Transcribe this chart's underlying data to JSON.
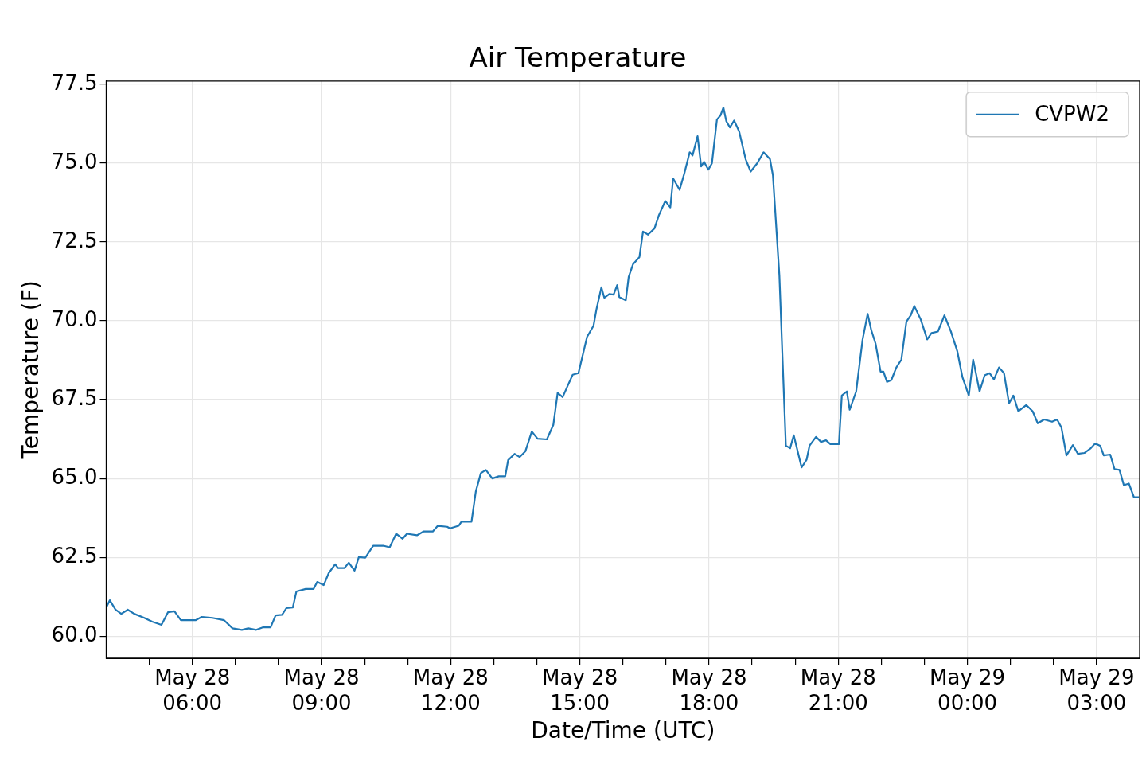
{
  "chart_data": {
    "type": "line",
    "title": "Air Temperature",
    "xlabel": "Date/Time (UTC)",
    "ylabel": "Temperature (F)",
    "x": [
      "--05-28T04:00",
      "--05-28T04:05",
      "--05-28T04:13",
      "--05-28T04:21",
      "--05-28T04:30",
      "--05-28T04:39",
      "--05-28T04:53",
      "--05-28T05:04",
      "--05-28T05:17",
      "--05-28T05:26",
      "--05-28T05:35",
      "--05-28T05:44",
      "--05-28T06:05",
      "--05-28T06:13",
      "--05-28T06:28",
      "--05-28T06:44",
      "--05-28T06:56",
      "--05-28T07:09",
      "--05-28T07:18",
      "--05-28T07:29",
      "--05-28T07:38",
      "--05-28T07:49",
      "--05-28T07:56",
      "--05-28T08:05",
      "--05-28T08:11",
      "--05-28T08:20",
      "--05-28T08:25",
      "--05-28T08:38",
      "--05-28T08:49",
      "--05-28T08:54",
      "--05-28T09:03",
      "--05-28T09:10",
      "--05-28T09:19",
      "--05-28T09:23",
      "--05-28T09:32",
      "--05-28T09:38",
      "--05-28T09:46",
      "--05-28T09:52",
      "--05-28T10:01",
      "--05-28T10:12",
      "--05-28T10:26",
      "--05-28T10:35",
      "--05-28T10:44",
      "--05-28T10:53",
      "--05-28T10:59",
      "--05-28T11:13",
      "--05-28T11:22",
      "--05-28T11:35",
      "--05-28T11:42",
      "--05-28T11:55",
      "--05-28T11:59",
      "--05-28T12:11",
      "--05-28T12:15",
      "--05-28T12:29",
      "--05-28T12:35",
      "--05-28T12:42",
      "--05-28T12:49",
      "--05-28T12:58",
      "--05-28T13:07",
      "--05-28T13:16",
      "--05-28T13:20",
      "--05-28T13:29",
      "--05-28T13:36",
      "--05-28T13:44",
      "--05-28T13:53",
      "--05-28T14:01",
      "--05-28T14:14",
      "--05-28T14:23",
      "--05-28T14:29",
      "--05-28T14:36",
      "--05-28T14:43",
      "--05-28T14:50",
      "--05-28T14:58",
      "--05-28T15:10",
      "--05-28T15:19",
      "--05-28T15:23",
      "--05-28T15:30",
      "--05-28T15:34",
      "--05-28T15:41",
      "--05-28T15:47",
      "--05-28T15:52",
      "--05-28T15:55",
      "--05-28T16:04",
      "--05-28T16:08",
      "--05-28T16:14",
      "--05-28T16:23",
      "--05-28T16:28",
      "--05-28T16:35",
      "--05-28T16:44",
      "--05-28T16:50",
      "--05-28T16:59",
      "--05-28T17:06",
      "--05-28T17:10",
      "--05-28T17:19",
      "--05-28T17:26",
      "--05-28T17:33",
      "--05-28T17:37",
      "--05-28T17:44",
      "--05-28T17:49",
      "--05-28T17:53",
      "--05-28T17:59",
      "--05-28T18:04",
      "--05-28T18:11",
      "--05-28T18:16",
      "--05-28T18:20",
      "--05-28T18:24",
      "--05-28T18:29",
      "--05-28T18:35",
      "--05-28T18:42",
      "--05-28T18:51",
      "--05-28T18:58",
      "--05-28T19:07",
      "--05-28T19:16",
      "--05-28T19:25",
      "--05-28T19:29",
      "--05-28T19:38",
      "--05-28T19:47",
      "--05-28T19:53",
      "--05-28T19:58",
      "--05-28T20:09",
      "--05-28T20:16",
      "--05-28T20:20",
      "--05-28T20:29",
      "--05-28T20:36",
      "--05-28T20:43",
      "--05-28T20:49",
      "--05-28T21:01",
      "--05-28T21:05",
      "--05-28T21:12",
      "--05-28T21:16",
      "--05-28T21:25",
      "--05-28T21:34",
      "--05-28T21:41",
      "--05-28T21:46",
      "--05-28T21:52",
      "--05-28T21:59",
      "--05-28T22:03",
      "--05-28T22:08",
      "--05-28T22:14",
      "--05-28T22:21",
      "--05-28T22:28",
      "--05-28T22:35",
      "--05-28T22:41",
      "--05-28T22:46",
      "--05-28T22:55",
      "--05-28T23:04",
      "--05-28T23:10",
      "--05-28T23:19",
      "--05-28T23:28",
      "--05-28T23:37",
      "--05-28T23:46",
      "--05-28T23:53",
      "--05-29T00:02",
      "--05-29T00:08",
      "--05-29T00:17",
      "--05-29T00:24",
      "--05-29T00:31",
      "--05-29T00:37",
      "--05-29T00:44",
      "--05-29T00:51",
      "--05-29T00:58",
      "--05-29T01:04",
      "--05-29T01:11",
      "--05-29T01:22",
      "--05-29T01:31",
      "--05-29T01:38",
      "--05-29T01:47",
      "--05-29T01:58",
      "--05-29T02:05",
      "--05-29T02:11",
      "--05-29T02:18",
      "--05-29T02:27",
      "--05-29T02:34",
      "--05-29T02:43",
      "--05-29T02:52",
      "--05-29T02:58",
      "--05-29T03:05",
      "--05-29T03:10",
      "--05-29T03:19",
      "--05-29T03:25",
      "--05-29T03:32",
      "--05-29T03:38",
      "--05-29T03:45",
      "--05-29T03:52",
      "--05-29T03:59"
    ],
    "series": [
      {
        "name": "CVPW2",
        "color": "#1f77b4",
        "values": [
          60.91,
          61.14,
          60.84,
          60.71,
          60.84,
          60.71,
          60.58,
          60.46,
          60.36,
          60.76,
          60.79,
          60.51,
          60.51,
          60.61,
          60.58,
          60.51,
          60.25,
          60.2,
          60.25,
          60.2,
          60.28,
          60.28,
          60.66,
          60.68,
          60.89,
          60.91,
          61.42,
          61.5,
          61.5,
          61.72,
          61.62,
          62.0,
          62.28,
          62.16,
          62.16,
          62.33,
          62.08,
          62.51,
          62.49,
          62.87,
          62.87,
          62.82,
          63.25,
          63.09,
          63.25,
          63.2,
          63.32,
          63.32,
          63.5,
          63.47,
          63.42,
          63.5,
          63.63,
          63.63,
          64.59,
          65.17,
          65.27,
          65.0,
          65.07,
          65.07,
          65.58,
          65.78,
          65.68,
          65.86,
          66.49,
          66.26,
          66.24,
          66.7,
          67.71,
          67.58,
          67.94,
          68.29,
          68.34,
          69.49,
          69.84,
          70.35,
          71.06,
          70.73,
          70.85,
          70.83,
          71.13,
          70.75,
          70.65,
          71.39,
          71.79,
          72.02,
          72.83,
          72.73,
          72.93,
          73.34,
          73.8,
          73.59,
          74.51,
          74.15,
          74.71,
          75.34,
          75.24,
          75.85,
          74.89,
          75.04,
          74.79,
          74.99,
          76.38,
          76.51,
          76.76,
          76.33,
          76.13,
          76.35,
          76.0,
          75.12,
          74.73,
          74.99,
          75.34,
          75.12,
          74.61,
          71.44,
          66.04,
          65.96,
          66.37,
          65.35,
          65.6,
          66.04,
          66.32,
          66.16,
          66.21,
          66.09,
          66.09,
          67.63,
          67.76,
          67.18,
          67.76,
          69.41,
          70.22,
          69.71,
          69.28,
          68.39,
          68.39,
          68.06,
          68.12,
          68.52,
          68.77,
          69.97,
          70.17,
          70.47,
          70.04,
          69.41,
          69.61,
          69.66,
          70.17,
          69.66,
          69.03,
          68.22,
          67.63,
          68.77,
          67.76,
          68.27,
          68.34,
          68.14,
          68.52,
          68.34,
          67.38,
          67.63,
          67.13,
          67.33,
          67.13,
          66.75,
          66.87,
          66.8,
          66.87,
          66.62,
          65.73,
          66.06,
          65.78,
          65.81,
          65.96,
          66.11,
          66.04,
          65.73,
          65.76,
          65.3,
          65.27,
          64.79,
          64.84,
          64.41,
          64.41
        ]
      }
    ],
    "xlim": [
      "--05-28T04:00",
      "--05-29T04:00"
    ],
    "xticks": [
      {
        "value": "--05-28T05:00",
        "label": null
      },
      {
        "value": "--05-28T06:00",
        "label": "May 28\n06:00"
      },
      {
        "value": "--05-28T07:00",
        "label": null
      },
      {
        "value": "--05-28T08:00",
        "label": null
      },
      {
        "value": "--05-28T09:00",
        "label": "May 28\n09:00"
      },
      {
        "value": "--05-28T10:00",
        "label": null
      },
      {
        "value": "--05-28T11:00",
        "label": null
      },
      {
        "value": "--05-28T12:00",
        "label": "May 28\n12:00"
      },
      {
        "value": "--05-28T13:00",
        "label": null
      },
      {
        "value": "--05-28T14:00",
        "label": null
      },
      {
        "value": "--05-28T15:00",
        "label": "May 28\n15:00"
      },
      {
        "value": "--05-28T16:00",
        "label": null
      },
      {
        "value": "--05-28T17:00",
        "label": null
      },
      {
        "value": "--05-28T18:00",
        "label": "May 28\n18:00"
      },
      {
        "value": "--05-28T19:00",
        "label": null
      },
      {
        "value": "--05-28T20:00",
        "label": null
      },
      {
        "value": "--05-28T21:00",
        "label": "May 28\n21:00"
      },
      {
        "value": "--05-28T22:00",
        "label": null
      },
      {
        "value": "--05-28T23:00",
        "label": null
      },
      {
        "value": "--05-29T00:00",
        "label": "May 29\n00:00"
      },
      {
        "value": "--05-29T01:00",
        "label": null
      },
      {
        "value": "--05-29T02:00",
        "label": null
      },
      {
        "value": "--05-29T03:00",
        "label": "May 29\n03:00"
      }
    ],
    "ylim": [
      59.3,
      77.6
    ],
    "yticks": [
      {
        "value": 60,
        "label": "60.0"
      },
      {
        "value": 62.5,
        "label": "62.5"
      },
      {
        "value": 65,
        "label": "65.0"
      },
      {
        "value": 67.5,
        "label": "67.5"
      },
      {
        "value": 70,
        "label": "70.0"
      },
      {
        "value": 72.5,
        "label": "72.5"
      },
      {
        "value": 75,
        "label": "75.0"
      },
      {
        "value": 77.5,
        "label": "77.5"
      }
    ],
    "grid": true,
    "legend": "top right",
    "marker": "none",
    "line_style": "solid"
  }
}
